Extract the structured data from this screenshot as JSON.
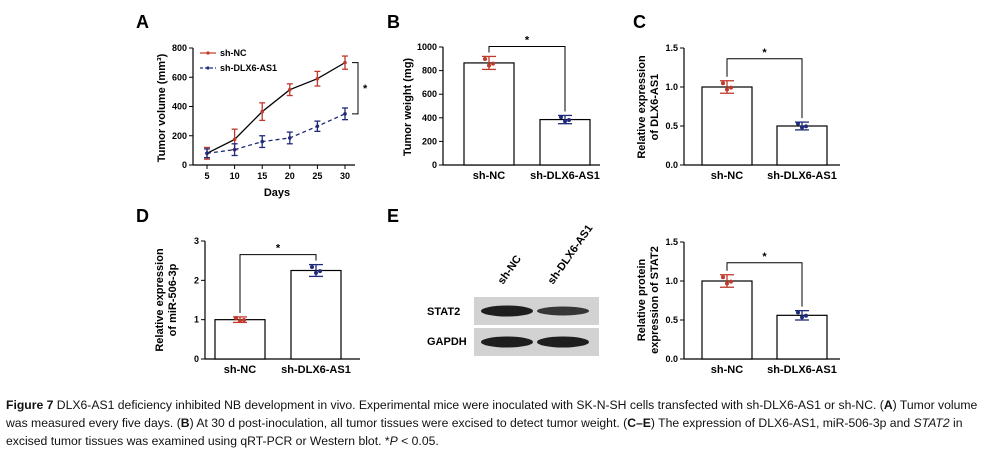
{
  "panels": {
    "A": "A",
    "B": "B",
    "C": "C",
    "D": "D",
    "E": "E"
  },
  "colors": {
    "red": "#c0392b",
    "blue": "#1f2a7a",
    "black": "#000000"
  },
  "chart_data": [
    {
      "id": "A",
      "type": "line",
      "title": "",
      "xlabel": "Days",
      "ylabel": "Tumor volume (mm³)",
      "x": [
        5,
        10,
        15,
        20,
        25,
        30
      ],
      "xticks": [
        "5",
        "10",
        "15",
        "20",
        "25",
        "30"
      ],
      "yticks": [
        "0",
        "200",
        "400",
        "600",
        "800"
      ],
      "ylim": [
        0,
        800
      ],
      "series": [
        {
          "name": "sh-NC",
          "values": [
            80,
            175,
            365,
            515,
            590,
            700
          ],
          "errors": [
            40,
            70,
            60,
            40,
            50,
            45
          ],
          "color": "#c0392b",
          "style": "solid"
        },
        {
          "name": "sh-DLX6-AS1",
          "values": [
            80,
            105,
            160,
            185,
            265,
            350
          ],
          "errors": [
            30,
            40,
            40,
            40,
            35,
            40
          ],
          "color": "#1f2a7a",
          "style": "dashed"
        }
      ],
      "significance": "*"
    },
    {
      "id": "B",
      "type": "bar",
      "ylabel": "Tumor weight (mg)",
      "categories": [
        "sh-NC",
        "sh-DLX6-AS1"
      ],
      "values": [
        865,
        385
      ],
      "errors": [
        55,
        35
      ],
      "ylim": [
        0,
        1000
      ],
      "yticks": [
        "0",
        "200",
        "400",
        "600",
        "800",
        "1000"
      ],
      "significance": "*"
    },
    {
      "id": "C",
      "type": "bar",
      "ylabel": "Relative expression of DLX6-AS1",
      "ylabel_lines": [
        "Relative expression",
        "of DLX6-AS1"
      ],
      "categories": [
        "sh-NC",
        "sh-DLX6-AS1"
      ],
      "values": [
        1.0,
        0.5
      ],
      "errors": [
        0.08,
        0.05
      ],
      "ylim": [
        0,
        1.5
      ],
      "yticks": [
        "0.0",
        "0.5",
        "1.0",
        "1.5"
      ],
      "significance": "*"
    },
    {
      "id": "D",
      "type": "bar",
      "ylabel": "Relative expression of miR-506-3p",
      "ylabel_lines": [
        "Relative expression",
        "of miR-506-3p"
      ],
      "categories": [
        "sh-NC",
        "sh-DLX6-AS1"
      ],
      "values": [
        1.0,
        2.25
      ],
      "errors": [
        0.07,
        0.15
      ],
      "ylim": [
        0,
        3
      ],
      "yticks": [
        "0",
        "1",
        "2",
        "3"
      ],
      "significance": "*"
    },
    {
      "id": "E2",
      "type": "bar",
      "ylabel": "Relative protein expression of STAT2",
      "ylabel_lines": [
        "Relative protein",
        "expression of STAT2"
      ],
      "categories": [
        "sh-NC",
        "sh-DLX6-AS1"
      ],
      "values": [
        1.0,
        0.56
      ],
      "errors": [
        0.08,
        0.06
      ],
      "ylim": [
        0,
        1.5
      ],
      "yticks": [
        "0.0",
        "0.5",
        "1.0",
        "1.5"
      ],
      "significance": "*"
    }
  ],
  "blot": {
    "lanes": [
      "sh-NC",
      "sh-DLX6-AS1"
    ],
    "rows": [
      {
        "label": "STAT2",
        "intensity": [
          1.0,
          0.6
        ]
      },
      {
        "label": "GAPDH",
        "intensity": [
          1.0,
          1.0
        ]
      }
    ]
  },
  "caption": {
    "figure_label": "Figure 7",
    "intro": " DLX6-AS1 deficiency inhibited NB development in vivo. Experimental mice were inoculated with SK-N-SH cells transfected with sh-DLX6-AS1 or sh-NC. (",
    "A": "A",
    "a_text": ") Tumor volume was measured every five days. (",
    "B": "B",
    "b_text": ") At 30 d post-inoculation, all tumor tissues were excised to detect tumor weight. (",
    "CE": "C–E",
    "ce_text": ") The expression of DLX6-AS1, miR-506-3p and ",
    "stat2": "STAT2",
    "tail": " in excised tumor tissues was examined using qRT-PCR or Western blot. *",
    "p": "P",
    "end": " < 0.05."
  }
}
